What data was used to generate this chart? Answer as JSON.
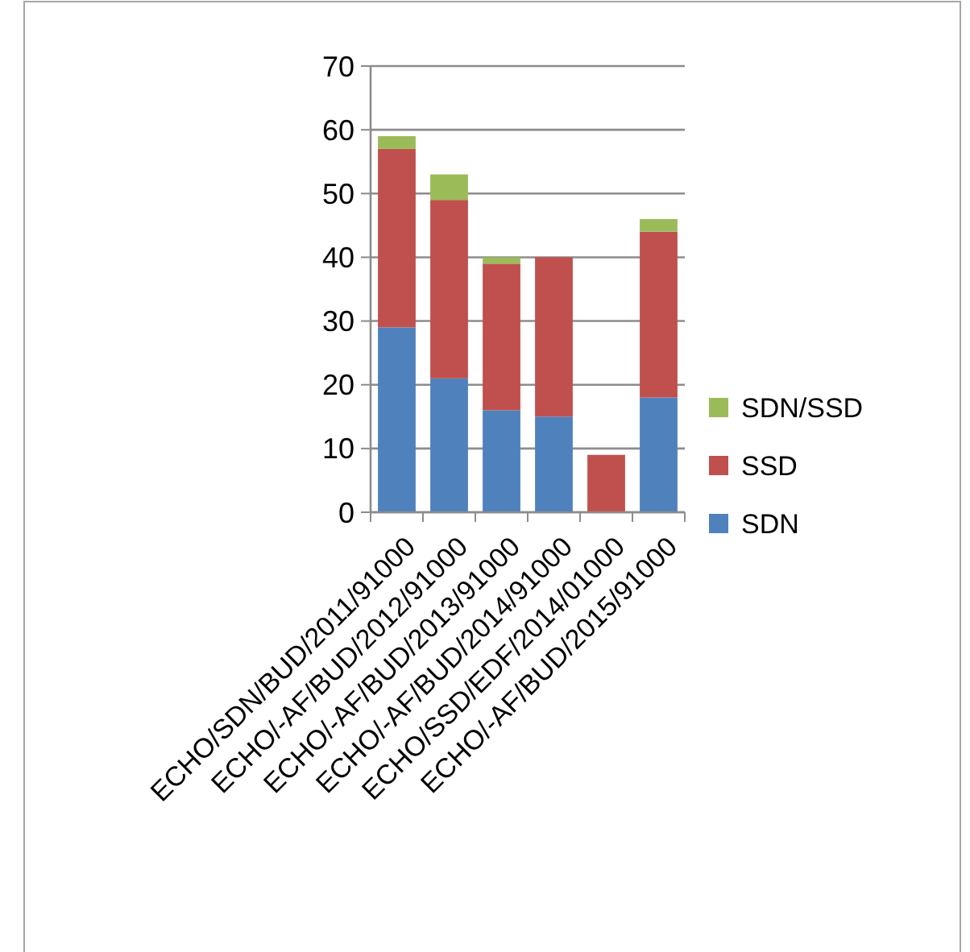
{
  "chart_data": {
    "type": "bar",
    "stacked": true,
    "categories": [
      "ECHO/SDN/BUD/2011/91000",
      "ECHO/-AF/BUD/2012/91000",
      "ECHO/-AF/BUD/2013/91000",
      "ECHO/-AF/BUD/2014/91000",
      "ECHO/SSD/EDF/2014/01000",
      "ECHO/-AF/BUD/2015/91000"
    ],
    "series": [
      {
        "name": "SDN",
        "color": "#4f81bd",
        "values": [
          29,
          21,
          16,
          15,
          0,
          18
        ]
      },
      {
        "name": "SSD",
        "color": "#c0504d",
        "values": [
          28,
          28,
          23,
          25,
          9,
          26
        ]
      },
      {
        "name": "SDN/SSD",
        "color": "#9bbb59",
        "values": [
          2,
          4,
          1,
          0,
          0,
          2
        ]
      }
    ],
    "ylim": [
      0,
      70
    ],
    "yticks": [
      0,
      10,
      20,
      30,
      40,
      50,
      60,
      70
    ],
    "grid": "y",
    "legend": "right"
  }
}
